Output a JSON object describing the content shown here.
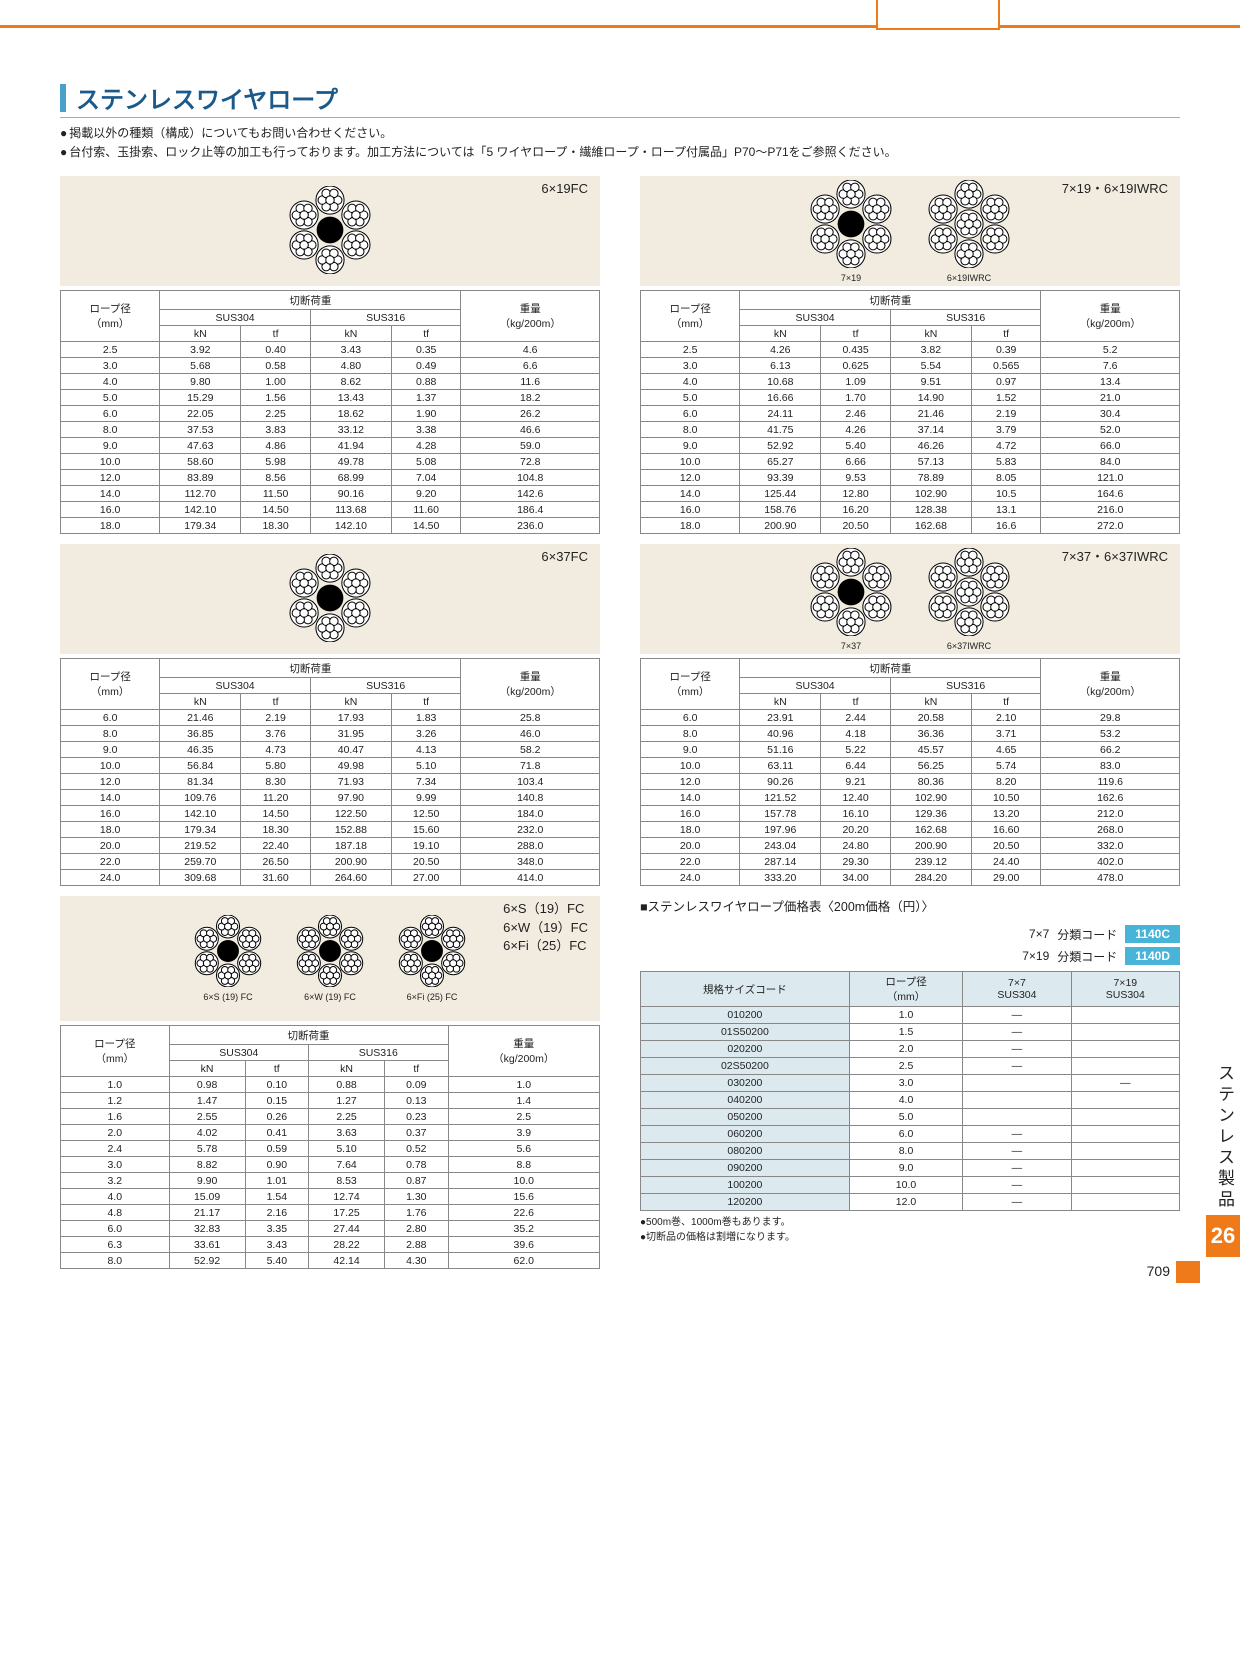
{
  "title": "ステンレスワイヤロープ",
  "bullets": [
    "掲載以外の種類（構成）についてもお問い合わせください。",
    "台付索、玉掛索、ロック止等の加工も行っております。加工方法については「5 ワイヤロープ・繊維ロープ・ロープ付属品」P70～P71をご参照ください。"
  ],
  "headers": {
    "rope_dia": "ロープ径\n（mm）",
    "break_load": "切断荷重",
    "sus304": "SUS304",
    "sus316": "SUS316",
    "kn": "kN",
    "tf": "tf",
    "weight": "重量\n（kg/200m）"
  },
  "tables": [
    {
      "id": "t1",
      "type_label": "6×19FC",
      "diagrams": [
        "flower6"
      ],
      "sub_labels": [],
      "rows": [
        [
          "2.5",
          "3.92",
          "0.40",
          "3.43",
          "0.35",
          "4.6"
        ],
        [
          "3.0",
          "5.68",
          "0.58",
          "4.80",
          "0.49",
          "6.6"
        ],
        [
          "4.0",
          "9.80",
          "1.00",
          "8.62",
          "0.88",
          "11.6"
        ],
        [
          "5.0",
          "15.29",
          "1.56",
          "13.43",
          "1.37",
          "18.2"
        ],
        [
          "6.0",
          "22.05",
          "2.25",
          "18.62",
          "1.90",
          "26.2"
        ],
        [
          "8.0",
          "37.53",
          "3.83",
          "33.12",
          "3.38",
          "46.6"
        ],
        [
          "9.0",
          "47.63",
          "4.86",
          "41.94",
          "4.28",
          "59.0"
        ],
        [
          "10.0",
          "58.60",
          "5.98",
          "49.78",
          "5.08",
          "72.8"
        ],
        [
          "12.0",
          "83.89",
          "8.56",
          "68.99",
          "7.04",
          "104.8"
        ],
        [
          "14.0",
          "112.70",
          "11.50",
          "90.16",
          "9.20",
          "142.6"
        ],
        [
          "16.0",
          "142.10",
          "14.50",
          "113.68",
          "11.60",
          "186.4"
        ],
        [
          "18.0",
          "179.34",
          "18.30",
          "142.10",
          "14.50",
          "236.0"
        ]
      ]
    },
    {
      "id": "t2",
      "type_label": "7×19・6×19IWRC",
      "diagrams": [
        "flower7s",
        "flower6iwrc"
      ],
      "sub_labels": [
        "7×19",
        "6×19IWRC"
      ],
      "rows": [
        [
          "2.5",
          "4.26",
          "0.435",
          "3.82",
          "0.39",
          "5.2"
        ],
        [
          "3.0",
          "6.13",
          "0.625",
          "5.54",
          "0.565",
          "7.6"
        ],
        [
          "4.0",
          "10.68",
          "1.09",
          "9.51",
          "0.97",
          "13.4"
        ],
        [
          "5.0",
          "16.66",
          "1.70",
          "14.90",
          "1.52",
          "21.0"
        ],
        [
          "6.0",
          "24.11",
          "2.46",
          "21.46",
          "2.19",
          "30.4"
        ],
        [
          "8.0",
          "41.75",
          "4.26",
          "37.14",
          "3.79",
          "52.0"
        ],
        [
          "9.0",
          "52.92",
          "5.40",
          "46.26",
          "4.72",
          "66.0"
        ],
        [
          "10.0",
          "65.27",
          "6.66",
          "57.13",
          "5.83",
          "84.0"
        ],
        [
          "12.0",
          "93.39",
          "9.53",
          "78.89",
          "8.05",
          "121.0"
        ],
        [
          "14.0",
          "125.44",
          "12.80",
          "102.90",
          "10.5",
          "164.6"
        ],
        [
          "16.0",
          "158.76",
          "16.20",
          "128.38",
          "13.1",
          "216.0"
        ],
        [
          "18.0",
          "200.90",
          "20.50",
          "162.68",
          "16.6",
          "272.0"
        ]
      ]
    },
    {
      "id": "t3",
      "type_label": "6×37FC",
      "diagrams": [
        "flower6b"
      ],
      "sub_labels": [],
      "rows": [
        [
          "6.0",
          "21.46",
          "2.19",
          "17.93",
          "1.83",
          "25.8"
        ],
        [
          "8.0",
          "36.85",
          "3.76",
          "31.95",
          "3.26",
          "46.0"
        ],
        [
          "9.0",
          "46.35",
          "4.73",
          "40.47",
          "4.13",
          "58.2"
        ],
        [
          "10.0",
          "56.84",
          "5.80",
          "49.98",
          "5.10",
          "71.8"
        ],
        [
          "12.0",
          "81.34",
          "8.30",
          "71.93",
          "7.34",
          "103.4"
        ],
        [
          "14.0",
          "109.76",
          "11.20",
          "97.90",
          "9.99",
          "140.8"
        ],
        [
          "16.0",
          "142.10",
          "14.50",
          "122.50",
          "12.50",
          "184.0"
        ],
        [
          "18.0",
          "179.34",
          "18.30",
          "152.88",
          "15.60",
          "232.0"
        ],
        [
          "20.0",
          "219.52",
          "22.40",
          "187.18",
          "19.10",
          "288.0"
        ],
        [
          "22.0",
          "259.70",
          "26.50",
          "200.90",
          "20.50",
          "348.0"
        ],
        [
          "24.0",
          "309.68",
          "31.60",
          "264.60",
          "27.00",
          "414.0"
        ]
      ]
    },
    {
      "id": "t4",
      "type_label": "7×37・6×37IWRC",
      "diagrams": [
        "flower7b",
        "flower6biwrc"
      ],
      "sub_labels": [
        "7×37",
        "6×37IWRC"
      ],
      "rows": [
        [
          "6.0",
          "23.91",
          "2.44",
          "20.58",
          "2.10",
          "29.8"
        ],
        [
          "8.0",
          "40.96",
          "4.18",
          "36.36",
          "3.71",
          "53.2"
        ],
        [
          "9.0",
          "51.16",
          "5.22",
          "45.57",
          "4.65",
          "66.2"
        ],
        [
          "10.0",
          "63.11",
          "6.44",
          "56.25",
          "5.74",
          "83.0"
        ],
        [
          "12.0",
          "90.26",
          "9.21",
          "80.36",
          "8.20",
          "119.6"
        ],
        [
          "14.0",
          "121.52",
          "12.40",
          "102.90",
          "10.50",
          "162.6"
        ],
        [
          "16.0",
          "157.78",
          "16.10",
          "129.36",
          "13.20",
          "212.0"
        ],
        [
          "18.0",
          "197.96",
          "20.20",
          "162.68",
          "16.60",
          "268.0"
        ],
        [
          "20.0",
          "243.04",
          "24.80",
          "200.90",
          "20.50",
          "332.0"
        ],
        [
          "22.0",
          "287.14",
          "29.30",
          "239.12",
          "24.40",
          "402.0"
        ],
        [
          "24.0",
          "333.20",
          "34.00",
          "284.20",
          "29.00",
          "478.0"
        ]
      ]
    },
    {
      "id": "t5",
      "type_label": "6×S（19）FC\n6×W（19）FC\n6×Fi（25）FC",
      "diagrams": [
        "flower6a",
        "flower6b2",
        "flower6c"
      ],
      "sub_labels": [
        "6×S (19) FC",
        "6×W (19) FC",
        "6×Fi (25) FC"
      ],
      "rows": [
        [
          "1.0",
          "0.98",
          "0.10",
          "0.88",
          "0.09",
          "1.0"
        ],
        [
          "1.2",
          "1.47",
          "0.15",
          "1.27",
          "0.13",
          "1.4"
        ],
        [
          "1.6",
          "2.55",
          "0.26",
          "2.25",
          "0.23",
          "2.5"
        ],
        [
          "2.0",
          "4.02",
          "0.41",
          "3.63",
          "0.37",
          "3.9"
        ],
        [
          "2.4",
          "5.78",
          "0.59",
          "5.10",
          "0.52",
          "5.6"
        ],
        [
          "3.0",
          "8.82",
          "0.90",
          "7.64",
          "0.78",
          "8.8"
        ],
        [
          "3.2",
          "9.90",
          "1.01",
          "8.53",
          "0.87",
          "10.0"
        ],
        [
          "4.0",
          "15.09",
          "1.54",
          "12.74",
          "1.30",
          "15.6"
        ],
        [
          "4.8",
          "21.17",
          "2.16",
          "17.25",
          "1.76",
          "22.6"
        ],
        [
          "6.0",
          "32.83",
          "3.35",
          "27.44",
          "2.80",
          "35.2"
        ],
        [
          "6.3",
          "33.61",
          "3.43",
          "28.22",
          "2.88",
          "39.6"
        ],
        [
          "8.0",
          "52.92",
          "5.40",
          "42.14",
          "4.30",
          "62.0"
        ]
      ]
    }
  ],
  "price": {
    "heading": "■ステンレスワイヤロープ価格表〈200m価格（円）〉",
    "codes": [
      {
        "label": "7×7",
        "text": "分類コード",
        "badge": "1140C"
      },
      {
        "label": "7×19",
        "text": "分類コード",
        "badge": "1140D"
      }
    ],
    "columns": [
      "規格サイズコード",
      "ロープ径\n（mm）",
      "7×7\nSUS304",
      "7×19\nSUS304"
    ],
    "rows": [
      [
        "010200",
        "1.0",
        "—",
        ""
      ],
      [
        "01S50200",
        "1.5",
        "—",
        ""
      ],
      [
        "020200",
        "2.0",
        "—",
        ""
      ],
      [
        "02S50200",
        "2.5",
        "—",
        ""
      ],
      [
        "030200",
        "3.0",
        "",
        "—"
      ],
      [
        "040200",
        "4.0",
        "",
        ""
      ],
      [
        "050200",
        "5.0",
        "",
        ""
      ],
      [
        "060200",
        "6.0",
        "—",
        ""
      ],
      [
        "080200",
        "8.0",
        "—",
        ""
      ],
      [
        "090200",
        "9.0",
        "—",
        ""
      ],
      [
        "100200",
        "10.0",
        "—",
        ""
      ],
      [
        "120200",
        "12.0",
        "—",
        ""
      ]
    ],
    "notes": [
      "500m巻、1000m巻もあります。",
      "切断品の価格は割増になります。"
    ]
  },
  "side": {
    "text": "ステンレス製品",
    "num": "26"
  },
  "page_number": "709"
}
